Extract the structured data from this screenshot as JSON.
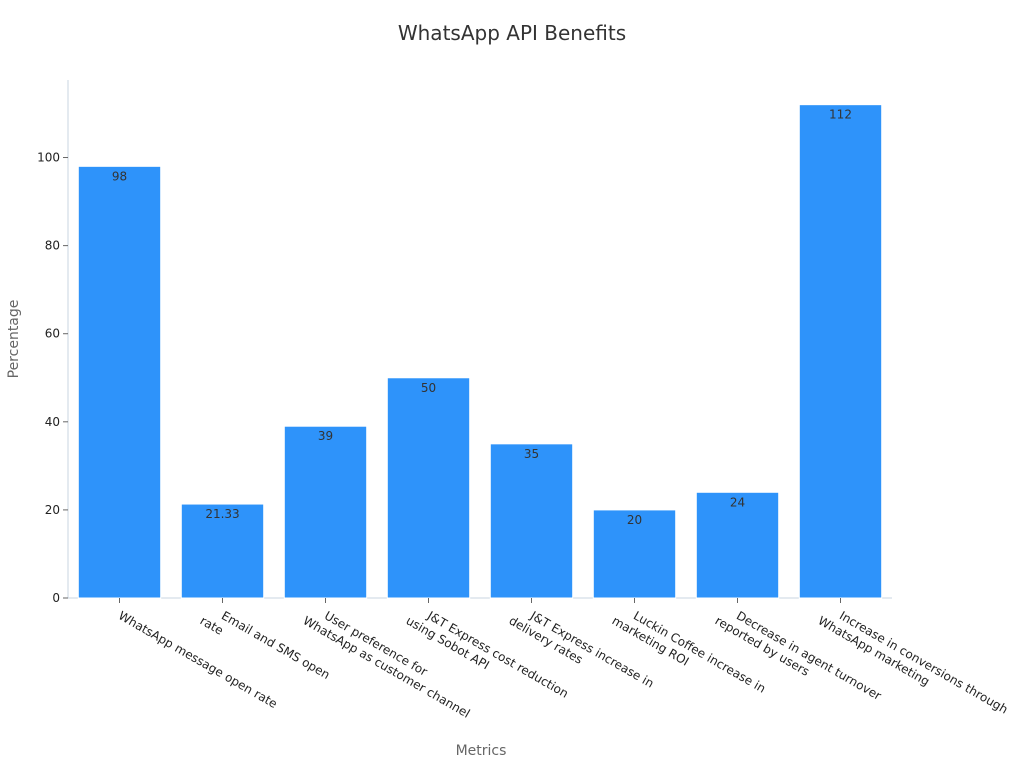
{
  "chart_data": {
    "type": "bar",
    "title": "WhatsApp API Benefits",
    "xlabel": "Metrics",
    "ylabel": "Percentage",
    "categories": [
      [
        "WhatsApp message open rate"
      ],
      [
        "Email and SMS open",
        "rate"
      ],
      [
        "User preference for",
        "WhatsApp as customer channel"
      ],
      [
        "J&T Express cost reduction",
        "using Sobot API"
      ],
      [
        "J&T Express increase in",
        "delivery rates"
      ],
      [
        "Luckin Coffee increase in",
        "marketing ROI"
      ],
      [
        "Decrease in agent turnover",
        "reported by users"
      ],
      [
        "Increase in conversions through",
        "WhatsApp marketing"
      ]
    ],
    "values": [
      98,
      21.33,
      39,
      50,
      35,
      20,
      24,
      112
    ],
    "value_labels": [
      "98",
      "21.33",
      "39",
      "50",
      "35",
      "20",
      "24",
      "112"
    ],
    "yticks": [
      0,
      20,
      40,
      60,
      80,
      100
    ],
    "ylim": [
      0,
      117.6
    ],
    "grid": false,
    "legend": "none",
    "colors": {
      "bar": "#2e93fa"
    }
  }
}
